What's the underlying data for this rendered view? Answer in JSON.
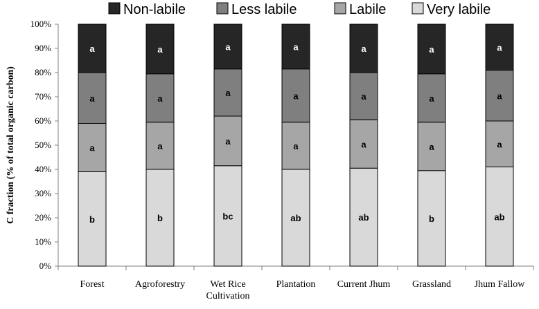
{
  "chart_data": {
    "type": "bar",
    "stacked": true,
    "percent_stacked": true,
    "ylabel": "C fraction (% of total organic carbon)",
    "xlabel": "",
    "ylim": [
      0,
      100
    ],
    "yticks": [
      "0%",
      "10%",
      "20%",
      "30%",
      "40%",
      "50%",
      "60%",
      "70%",
      "80%",
      "90%",
      "100%"
    ],
    "grid": false,
    "legend_position": "top",
    "categories": [
      "Forest",
      "Agroforestry",
      "Wet Rice Cultivation",
      "Plantation",
      "Current Jhum",
      "Grassland",
      "Jhum Fallow"
    ],
    "category_lines": [
      [
        "Forest"
      ],
      [
        "Agroforestry"
      ],
      [
        "Wet Rice",
        "Cultivation"
      ],
      [
        "Plantation"
      ],
      [
        "Current Jhum"
      ],
      [
        "Grassland"
      ],
      [
        "Jhum Fallow"
      ]
    ],
    "series": [
      {
        "name": "Very labile",
        "color": "#d9d9d9",
        "label_color": "#000000",
        "values": [
          39,
          40,
          41.5,
          40,
          40.5,
          39.5,
          41
        ],
        "labels": [
          "b",
          "b",
          "bc",
          "ab",
          "ab",
          "b",
          "ab"
        ]
      },
      {
        "name": "Labile",
        "color": "#a6a6a6",
        "label_color": "#000000",
        "values": [
          20,
          19.5,
          20.5,
          19.5,
          20,
          20,
          19
        ],
        "labels": [
          "a",
          "a",
          "a",
          "a",
          "a",
          "a",
          "a"
        ]
      },
      {
        "name": "Less labile",
        "color": "#7f7f7f",
        "label_color": "#000000",
        "values": [
          21,
          20,
          19.5,
          22,
          19.5,
          20,
          21
        ],
        "labels": [
          "a",
          "a",
          "a",
          "a",
          "a",
          "a",
          "a"
        ]
      },
      {
        "name": "Non-labile",
        "color": "#262626",
        "label_color": "#ffffff",
        "values": [
          20,
          20.5,
          18.5,
          18.5,
          20,
          20.5,
          19
        ],
        "labels": [
          "a",
          "a",
          "a",
          "a",
          "a",
          "a",
          "a"
        ]
      }
    ],
    "legend_order": [
      "Non-labile",
      "Less labile",
      "Labile",
      "Very labile"
    ]
  }
}
